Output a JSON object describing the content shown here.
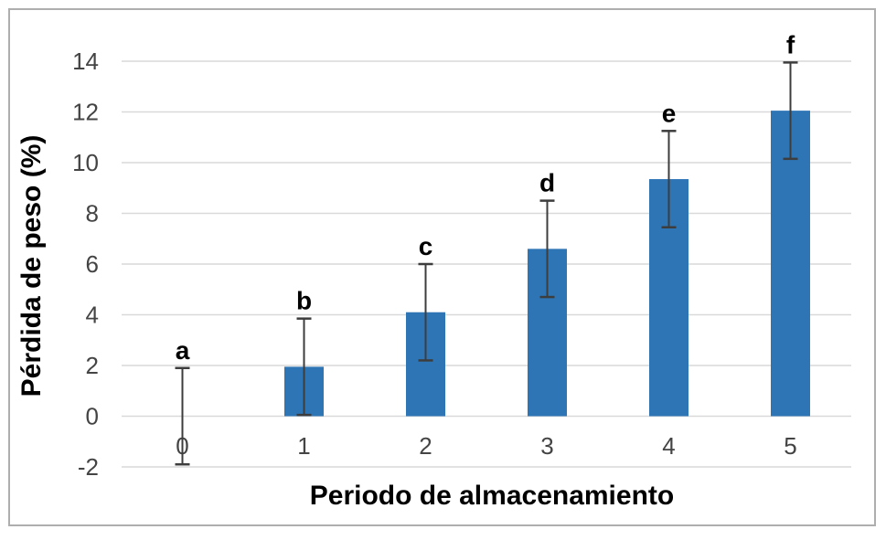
{
  "figure": {
    "background_color": "#ffffff",
    "border_color": "#aeaeae"
  },
  "chart_data": {
    "type": "bar",
    "title": "",
    "xlabel": "Periodo de almacenamiento",
    "ylabel": "Pérdida de peso (%)",
    "categories": [
      "0",
      "1",
      "2",
      "3",
      "4",
      "5"
    ],
    "values": [
      0,
      1.95,
      4.1,
      6.6,
      9.35,
      12.05
    ],
    "error_bars": [
      1.9,
      1.9,
      1.9,
      1.9,
      1.9,
      1.9
    ],
    "sig_letters": [
      "a",
      "b",
      "c",
      "d",
      "e",
      "f"
    ],
    "ylim": [
      -2,
      14
    ],
    "ytick_step": 2,
    "ytick_labels": [
      "-2",
      "0",
      "2",
      "4",
      "6",
      "8",
      "10",
      "12",
      "14"
    ],
    "grid": true,
    "legend": false,
    "bar_color": "#2E75B6",
    "gridline_color": "#D9D9D9",
    "tick_label_color": "#444444",
    "error_bar_color": "#3d3d3d",
    "letter_color": "#000000"
  }
}
